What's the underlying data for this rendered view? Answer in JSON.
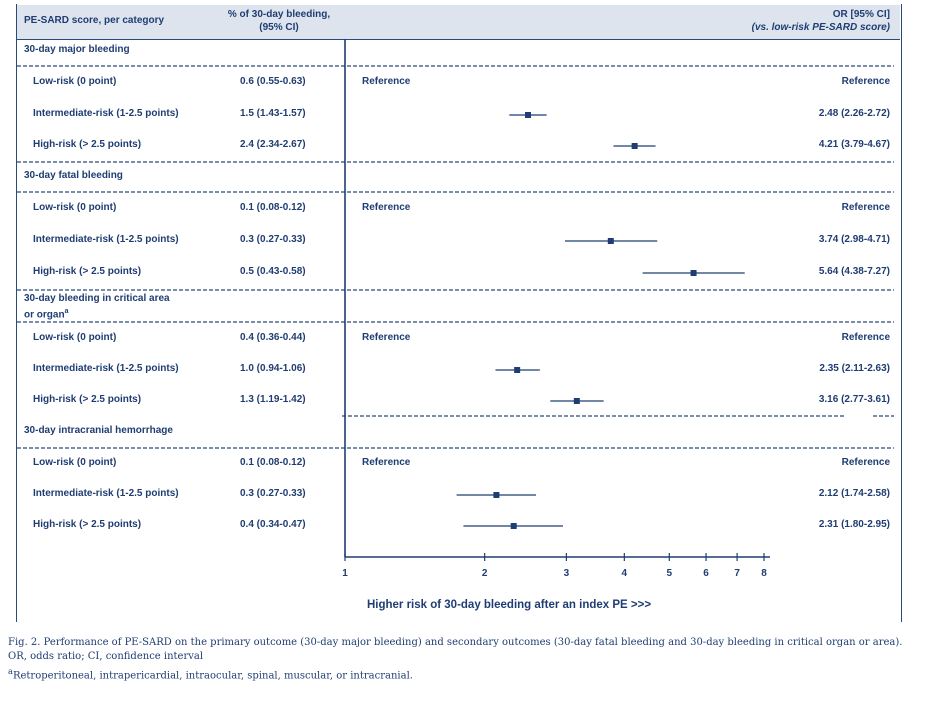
{
  "header": {
    "col1": "PE-SARD score, per category",
    "col2_line1": "% of 30-day bleeding,",
    "col2_line2": "(95% CI)",
    "col3_line1": "OR [95% CI]",
    "col3_line2": "(vs. low-risk PE-SARD score)"
  },
  "chart_data": {
    "type": "forest",
    "xlabel": "Higher risk of 30-day bleeding after an index PE >>>",
    "xlim": [
      1,
      8
    ],
    "x_scale": "log",
    "x_ticks": [
      1,
      2,
      3,
      4,
      5,
      6,
      7,
      8
    ],
    "reference_line": 1,
    "sections": [
      {
        "title": "30-day major bleeding",
        "rows": [
          {
            "label": "Low-risk (0 point)",
            "pct": "0.6 (0.55-0.63)",
            "or_text": "Reference",
            "reference": true
          },
          {
            "label": "Intermediate-risk (1-2.5 points)",
            "pct": "1.5 (1.43-1.57)",
            "or_text": "2.48 (2.26-2.72)",
            "or": 2.48,
            "lo": 2.26,
            "hi": 2.72
          },
          {
            "label": "High-risk (> 2.5 points)",
            "pct": "2.4 (2.34-2.67)",
            "or_text": "4.21 (3.79-4.67)",
            "or": 4.21,
            "lo": 3.79,
            "hi": 4.67
          }
        ]
      },
      {
        "title": "30-day fatal bleeding",
        "rows": [
          {
            "label": "Low-risk (0 point)",
            "pct": "0.1 (0.08-0.12)",
            "or_text": "Reference",
            "reference": true
          },
          {
            "label": "Intermediate-risk (1-2.5 points)",
            "pct": "0.3 (0.27-0.33)",
            "or_text": "3.74 (2.98-4.71)",
            "or": 3.74,
            "lo": 2.98,
            "hi": 4.71
          },
          {
            "label": "High-risk (> 2.5 points)",
            "pct": "0.5 (0.43-0.58)",
            "or_text": "5.64 (4.38-7.27)",
            "or": 5.64,
            "lo": 4.38,
            "hi": 7.27
          }
        ]
      },
      {
        "title": "30-day bleeding in critical area",
        "title2": "or organ",
        "title_sup": "a",
        "rows": [
          {
            "label": "Low-risk (0 point)",
            "pct": "0.4 (0.36-0.44)",
            "or_text": "Reference",
            "reference": true
          },
          {
            "label": "Intermediate-risk (1-2.5 points)",
            "pct": "1.0 (0.94-1.06)",
            "or_text": "2.35 (2.11-2.63)",
            "or": 2.35,
            "lo": 2.11,
            "hi": 2.63
          },
          {
            "label": "High-risk (> 2.5 points)",
            "pct": "1.3 (1.19-1.42)",
            "or_text": "3.16 (2.77-3.61)",
            "or": 3.16,
            "lo": 2.77,
            "hi": 3.61
          }
        ]
      },
      {
        "title": "30-day intracranial hemorrhage",
        "rows": [
          {
            "label": "Low-risk (0 point)",
            "pct": "0.1 (0.08-0.12)",
            "or_text": "Reference",
            "reference": true
          },
          {
            "label": "Intermediate-risk (1-2.5 points)",
            "pct": "0.3 (0.27-0.33)",
            "or_text": "2.12 (1.74-2.58)",
            "or": 2.12,
            "lo": 1.74,
            "hi": 2.58
          },
          {
            "label": "High-risk (> 2.5 points)",
            "pct": "0.4 (0.34-0.47)",
            "or_text": "2.31 (1.80-2.95)",
            "or": 2.31,
            "lo": 1.8,
            "hi": 2.95
          }
        ]
      }
    ]
  },
  "caption": {
    "line1": "Fig. 2. Performance of PE-SARD on the primary outcome (30-day major bleeding) and secondary outcomes (30-day fatal bleeding and 30-day bleeding in critical organ or area).",
    "line2": "OR, odds ratio; CI, confidence interval",
    "footnote_mark": "a",
    "footnote": "Retroperitoneal, intrapericardial, intraocular, spinal, muscular, or intracranial."
  },
  "colors": {
    "ink": "#1f3d72",
    "header_bg": "#dde4ee",
    "rule": "#2a4a7a"
  }
}
